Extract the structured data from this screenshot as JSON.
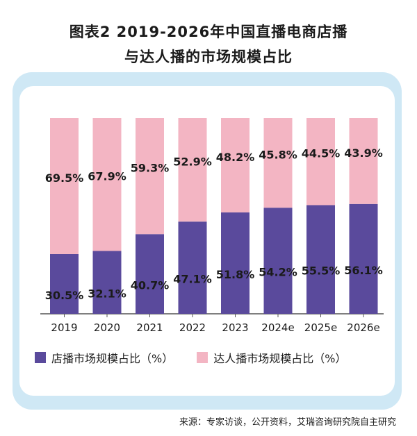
{
  "title_line1": "图表2  2019-2026年中国直播电商店播",
  "title_line2": "与达人播的市场规模占比",
  "source": "来源：专家访谈，公开资料，艾瑞咨询研究院自主研究",
  "colors": {
    "store": "#5a4a9c",
    "influencer": "#f3b5c3",
    "outer": "#cfe8f5"
  },
  "chart_data": {
    "type": "bar",
    "stacked": true,
    "categories": [
      "2019",
      "2020",
      "2021",
      "2022",
      "2023",
      "2024e",
      "2025e",
      "2026e"
    ],
    "ylim": [
      0,
      100
    ],
    "series": [
      {
        "name": "店播市场规模占比（%）",
        "values": [
          30.5,
          32.1,
          40.7,
          47.1,
          51.8,
          54.2,
          55.5,
          56.1
        ],
        "labels": [
          "30.5%",
          "32.1%",
          "40.7%",
          "47.1%",
          "51.8%",
          "54.2%",
          "55.5%",
          "56.1%"
        ]
      },
      {
        "name": "达人播市场规模占比（%）",
        "values": [
          69.5,
          67.9,
          59.3,
          52.9,
          48.2,
          45.8,
          44.5,
          43.9
        ],
        "labels": [
          "69.5%",
          "67.9%",
          "59.3%",
          "52.9%",
          "48.2%",
          "45.8%",
          "44.5%",
          "43.9%"
        ]
      }
    ],
    "legend_position": "bottom"
  }
}
